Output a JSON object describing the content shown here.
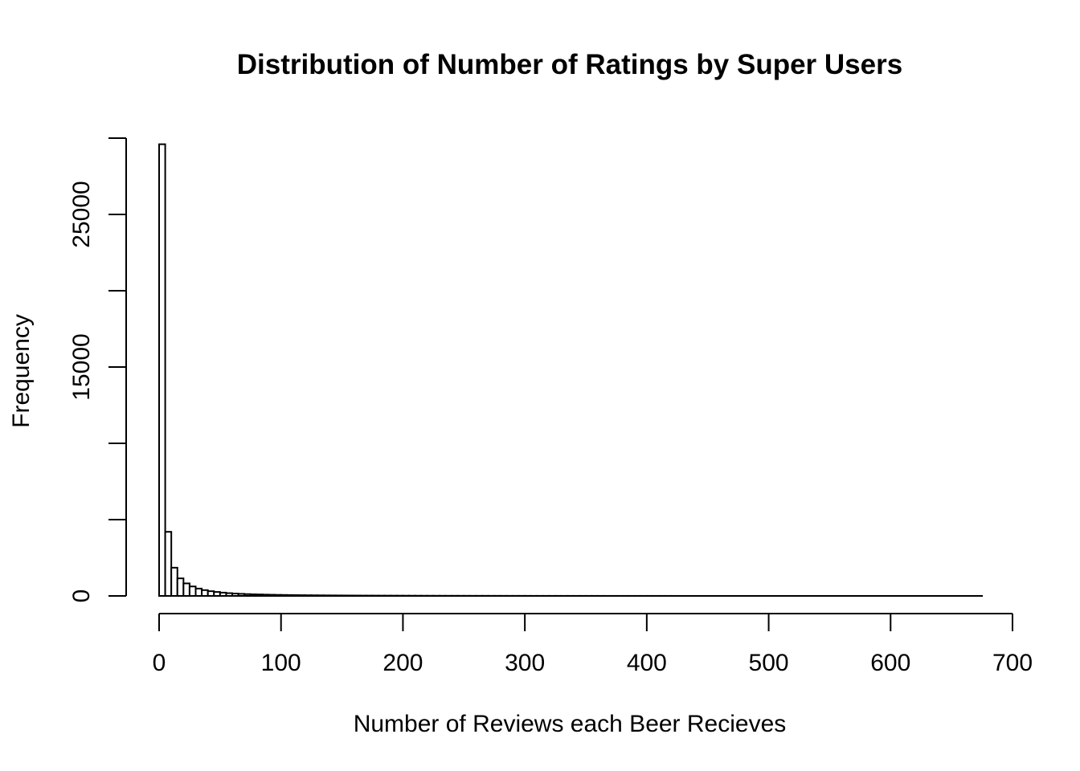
{
  "chart_data": {
    "type": "bar",
    "title": "Distribution of Number of Ratings by Super Users",
    "xlabel": "Number of Reviews each Beer Recieves",
    "ylabel": "Frequency",
    "xlim": [
      0,
      700
    ],
    "ylim": [
      0,
      30000
    ],
    "x_ticks": [
      0,
      100,
      200,
      300,
      400,
      500,
      600,
      700
    ],
    "y_ticks": [
      0,
      5000,
      10000,
      15000,
      20000,
      25000,
      30000
    ],
    "y_tick_labels": [
      "0",
      "",
      "",
      "15000",
      "",
      "25000",
      ""
    ],
    "grid": false,
    "legend": "none",
    "bin_width": 5,
    "bins_start": 0,
    "values": [
      29600,
      4200,
      1850,
      1150,
      820,
      620,
      480,
      380,
      310,
      260,
      215,
      180,
      155,
      135,
      118,
      105,
      95,
      85,
      76,
      68,
      62,
      56,
      51,
      47,
      43,
      40,
      37,
      34,
      32,
      30,
      28,
      26,
      24,
      22,
      21,
      20,
      19,
      18,
      17,
      16,
      15,
      14,
      13,
      12,
      11,
      10,
      10,
      9,
      9,
      8,
      8,
      7,
      7,
      7,
      6,
      6,
      6,
      5,
      5,
      5,
      5,
      4,
      4,
      4,
      4,
      4,
      3,
      3,
      3,
      3,
      3,
      3,
      3,
      2,
      2,
      2,
      2,
      2,
      2,
      2,
      2,
      2,
      2,
      2,
      2,
      1,
      1,
      1,
      1,
      1,
      1,
      1,
      1,
      1,
      1,
      1,
      1,
      1,
      1,
      1,
      1,
      1,
      1,
      1,
      1,
      1,
      1,
      1,
      1,
      1,
      1,
      1,
      1,
      1,
      1,
      1,
      1,
      1,
      1,
      1,
      1,
      1,
      1,
      1,
      1,
      1,
      1,
      1,
      1,
      1,
      1,
      1,
      1,
      1,
      1
    ]
  }
}
